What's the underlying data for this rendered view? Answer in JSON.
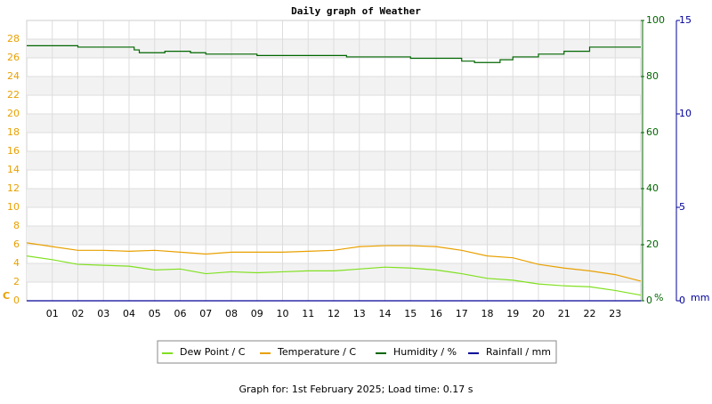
{
  "chart_data": {
    "type": "line",
    "title": "Daily graph of Weather",
    "footer": "Graph for: 1st February 2025; Load time: 0.17 s",
    "y_unit": "C",
    "y2_unit": "%",
    "y3_unit": "mm",
    "xlim": [
      0,
      24
    ],
    "xticks": [
      {
        "value": 1,
        "label": "01"
      },
      {
        "value": 2,
        "label": "02"
      },
      {
        "value": 3,
        "label": "03"
      },
      {
        "value": 4,
        "label": "04"
      },
      {
        "value": 5,
        "label": "05"
      },
      {
        "value": 6,
        "label": "06"
      },
      {
        "value": 7,
        "label": "07"
      },
      {
        "value": 8,
        "label": "08"
      },
      {
        "value": 9,
        "label": "09"
      },
      {
        "value": 10,
        "label": "10"
      },
      {
        "value": 11,
        "label": "11"
      },
      {
        "value": 12,
        "label": "12"
      },
      {
        "value": 13,
        "label": "13"
      },
      {
        "value": 14,
        "label": "14"
      },
      {
        "value": 15,
        "label": "15"
      },
      {
        "value": 16,
        "label": "16"
      },
      {
        "value": 17,
        "label": "17"
      },
      {
        "value": 18,
        "label": "18"
      },
      {
        "value": 19,
        "label": "19"
      },
      {
        "value": 20,
        "label": "20"
      },
      {
        "value": 21,
        "label": "21"
      },
      {
        "value": 22,
        "label": "22"
      },
      {
        "value": 23,
        "label": "23"
      }
    ],
    "ylim": [
      0,
      30
    ],
    "yticks": [
      0,
      2,
      4,
      6,
      8,
      10,
      12,
      14,
      16,
      18,
      20,
      22,
      24,
      26,
      28
    ],
    "y_color": "#e8a000",
    "y2lim": [
      0,
      100
    ],
    "y2ticks": [
      0,
      20,
      40,
      60,
      80,
      100
    ],
    "y2_color": "#006600",
    "y3lim": [
      0,
      15
    ],
    "y3ticks": [
      0,
      5,
      10,
      15
    ],
    "y3_color": "#000099",
    "grid": true,
    "series": [
      {
        "name": "Dew Point / C",
        "color": "#80e020",
        "step": false,
        "x": [
          0,
          1,
          2,
          3,
          4,
          5,
          6,
          7,
          8,
          9,
          10,
          11,
          12,
          13,
          14,
          15,
          16,
          17,
          18,
          19,
          20,
          21,
          22,
          23,
          24
        ],
        "values": [
          4.8,
          4.4,
          3.9,
          3.8,
          3.7,
          3.3,
          3.4,
          2.9,
          3.1,
          3.0,
          3.1,
          3.2,
          3.2,
          3.4,
          3.6,
          3.5,
          3.3,
          2.9,
          2.4,
          2.2,
          1.8,
          1.6,
          1.5,
          1.1,
          0.6
        ]
      },
      {
        "name": "Temperature / C",
        "color": "#e8a000",
        "step": false,
        "x": [
          0,
          1,
          2,
          3,
          4,
          5,
          6,
          7,
          8,
          9,
          10,
          11,
          12,
          13,
          14,
          15,
          16,
          17,
          18,
          19,
          20,
          21,
          22,
          23,
          24
        ],
        "values": [
          6.2,
          5.8,
          5.4,
          5.4,
          5.3,
          5.4,
          5.2,
          5.0,
          5.2,
          5.2,
          5.2,
          5.3,
          5.4,
          5.8,
          5.9,
          5.9,
          5.8,
          5.4,
          4.8,
          4.6,
          3.9,
          3.5,
          3.2,
          2.8,
          2.1
        ]
      },
      {
        "name": "Humidity / %",
        "color": "#006600",
        "step": true,
        "axis": "y2",
        "x": [
          0,
          1,
          2,
          4,
          4.2,
          4.4,
          5.4,
          6.4,
          7,
          8,
          9,
          10,
          12,
          12.5,
          14,
          15,
          16,
          17,
          17.5,
          18,
          18.5,
          19,
          20,
          21,
          22,
          24
        ],
        "values": [
          91,
          91,
          90.5,
          90.5,
          89.5,
          88.5,
          89,
          88.5,
          88,
          88,
          87.5,
          87.5,
          87.5,
          87,
          87,
          86.5,
          86.5,
          85.5,
          85,
          85,
          86,
          87,
          88,
          89,
          90.5,
          90.5
        ]
      },
      {
        "name": "Rainfall / mm",
        "color": "#000099",
        "step": false,
        "axis": "y3",
        "x": [
          0,
          24
        ],
        "values": [
          0,
          0
        ]
      }
    ]
  }
}
